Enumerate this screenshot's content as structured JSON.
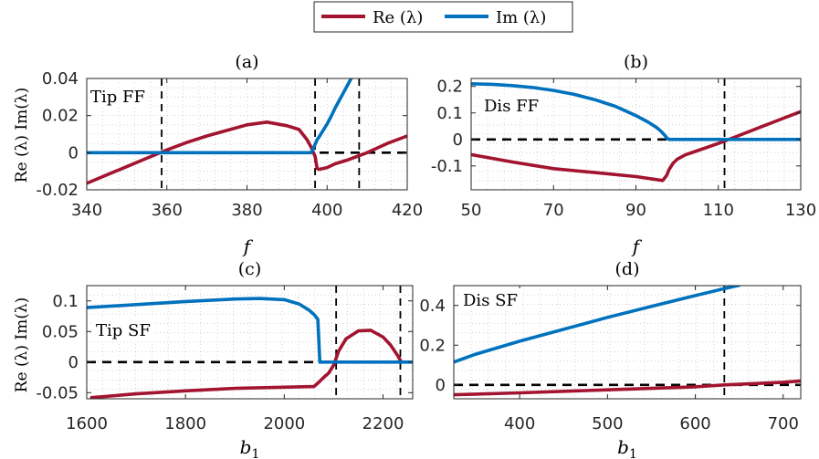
{
  "legend": {
    "re_label": "Re (λ)",
    "im_label": "Im (λ)"
  },
  "colors": {
    "re": "#A2142F",
    "im": "#0072BD",
    "ref": "#000000"
  },
  "chart_data": [
    {
      "type": "line",
      "title": "(a)",
      "annotation": "Tip FF",
      "xlabel": "f",
      "ylabel": "Re (λ) Im(λ)",
      "xlim": [
        340,
        420
      ],
      "ylim": [
        -0.02,
        0.04
      ],
      "xticks": [
        "340",
        "360",
        "380",
        "400",
        "420"
      ],
      "yticks": [
        "-0.02",
        "0",
        "0.02",
        "0.04"
      ],
      "grid": true,
      "series": [
        {
          "name": "Re (λ)",
          "x": [
            340,
            345,
            350,
            355,
            360,
            365,
            370,
            375,
            380,
            385,
            390,
            393,
            395,
            396,
            397,
            397.5,
            398,
            400,
            402,
            405,
            410,
            415,
            420
          ],
          "y": [
            -0.0165,
            -0.012,
            -0.0075,
            -0.003,
            0.0015,
            0.0055,
            0.009,
            0.012,
            0.015,
            0.0165,
            0.0145,
            0.0125,
            0.007,
            0.003,
            -0.002,
            -0.0085,
            -0.009,
            -0.008,
            -0.006,
            -0.004,
            0,
            0.005,
            0.009
          ]
        },
        {
          "name": "Im (λ)",
          "x": [
            340,
            350,
            360,
            370,
            380,
            390,
            396,
            396.5,
            397,
            397.5,
            398,
            399,
            400,
            401,
            402,
            403,
            404,
            405,
            406
          ],
          "y": [
            0,
            0,
            0,
            0,
            0,
            0,
            0,
            0.002,
            0.0045,
            0.007,
            0.0085,
            0.012,
            0.0155,
            0.0195,
            0.024,
            0.028,
            0.032,
            0.036,
            0.04
          ]
        }
      ],
      "ref_lines": {
        "hline": 0,
        "vlines": [
          358.7,
          397,
          408
        ]
      }
    },
    {
      "type": "line",
      "title": "(b)",
      "annotation": "Dis FF",
      "xlabel": "f",
      "ylabel": "",
      "xlim": [
        50,
        130
      ],
      "ylim": [
        -0.19,
        0.23
      ],
      "xticks": [
        "50",
        "70",
        "90",
        "110",
        "130"
      ],
      "yticks": [
        "0.2",
        "0.1",
        "0",
        "-0.1"
      ],
      "grid": true,
      "series": [
        {
          "name": "Re (λ)",
          "x": [
            50,
            60,
            70,
            80,
            90,
            96.5,
            97.5,
            98,
            99,
            100,
            102,
            105,
            110,
            115,
            120,
            125,
            130
          ],
          "y": [
            -0.057,
            -0.085,
            -0.11,
            -0.125,
            -0.14,
            -0.155,
            -0.135,
            -0.115,
            -0.09,
            -0.075,
            -0.058,
            -0.042,
            -0.015,
            0.015,
            0.045,
            0.075,
            0.105
          ]
        },
        {
          "name": "Im (λ)",
          "x": [
            50,
            55,
            60,
            65,
            70,
            75,
            80,
            85,
            90,
            93,
            95,
            96,
            97,
            97.5,
            98,
            110,
            120,
            130
          ],
          "y": [
            0.21,
            0.208,
            0.203,
            0.196,
            0.185,
            0.17,
            0.15,
            0.125,
            0.09,
            0.065,
            0.045,
            0.032,
            0.016,
            0.006,
            0,
            0,
            0,
            0
          ]
        }
      ],
      "ref_lines": {
        "hline": 0,
        "vlines": [
          111.5
        ]
      }
    },
    {
      "type": "line",
      "title": "(c)",
      "annotation": "Tip SF",
      "xlabel": "b1",
      "ylabel": "Re (λ) Im(λ)",
      "xlim": [
        1600,
        2260
      ],
      "ylim": [
        -0.06,
        0.125
      ],
      "xticks": [
        "1600",
        "1800",
        "2000",
        "2200"
      ],
      "yticks": [
        "0.1",
        "0.05",
        "0",
        "-0.05"
      ],
      "grid": true,
      "series": [
        {
          "name": "Re (λ)",
          "x": [
            1610,
            1700,
            1800,
            1900,
            2000,
            2060,
            2070,
            2080,
            2090,
            2100,
            2110,
            2125,
            2150,
            2175,
            2200,
            2215,
            2230,
            2237
          ],
          "y": [
            -0.058,
            -0.052,
            -0.047,
            -0.043,
            -0.041,
            -0.04,
            -0.033,
            -0.025,
            -0.018,
            -0.005,
            0.018,
            0.038,
            0.051,
            0.052,
            0.041,
            0.028,
            0.01,
            0
          ]
        },
        {
          "name": "Im (λ)",
          "x": [
            1600,
            1700,
            1800,
            1900,
            1950,
            2000,
            2030,
            2050,
            2060,
            2068,
            2070,
            2072,
            2100,
            2150,
            2200,
            2260
          ],
          "y": [
            0.089,
            0.094,
            0.099,
            0.103,
            0.104,
            0.102,
            0.095,
            0.085,
            0.078,
            0.07,
            0.035,
            0,
            0,
            0,
            0,
            0
          ]
        }
      ],
      "ref_lines": {
        "hline": 0,
        "vlines": [
          2105,
          2235
        ]
      }
    },
    {
      "type": "line",
      "title": "(d)",
      "annotation": "Dis SF",
      "xlabel": "b1",
      "ylabel": "",
      "xlim": [
        325,
        720
      ],
      "ylim": [
        -0.07,
        0.5
      ],
      "xticks": [
        "400",
        "500",
        "600",
        "700"
      ],
      "yticks": [
        "0.4",
        "0.2",
        "0"
      ],
      "grid": true,
      "series": [
        {
          "name": "Re (λ)",
          "x": [
            325,
            400,
            500,
            600,
            633,
            700,
            720
          ],
          "y": [
            -0.05,
            -0.04,
            -0.025,
            -0.01,
            0,
            0.013,
            0.02
          ]
        },
        {
          "name": "Im (λ)",
          "x": [
            325,
            350,
            400,
            450,
            500,
            550,
            600,
            633,
            650
          ],
          "y": [
            0.115,
            0.155,
            0.22,
            0.28,
            0.34,
            0.395,
            0.45,
            0.485,
            0.502
          ]
        }
      ],
      "ref_lines": {
        "hline": 0,
        "vlines": [
          633
        ]
      }
    }
  ]
}
